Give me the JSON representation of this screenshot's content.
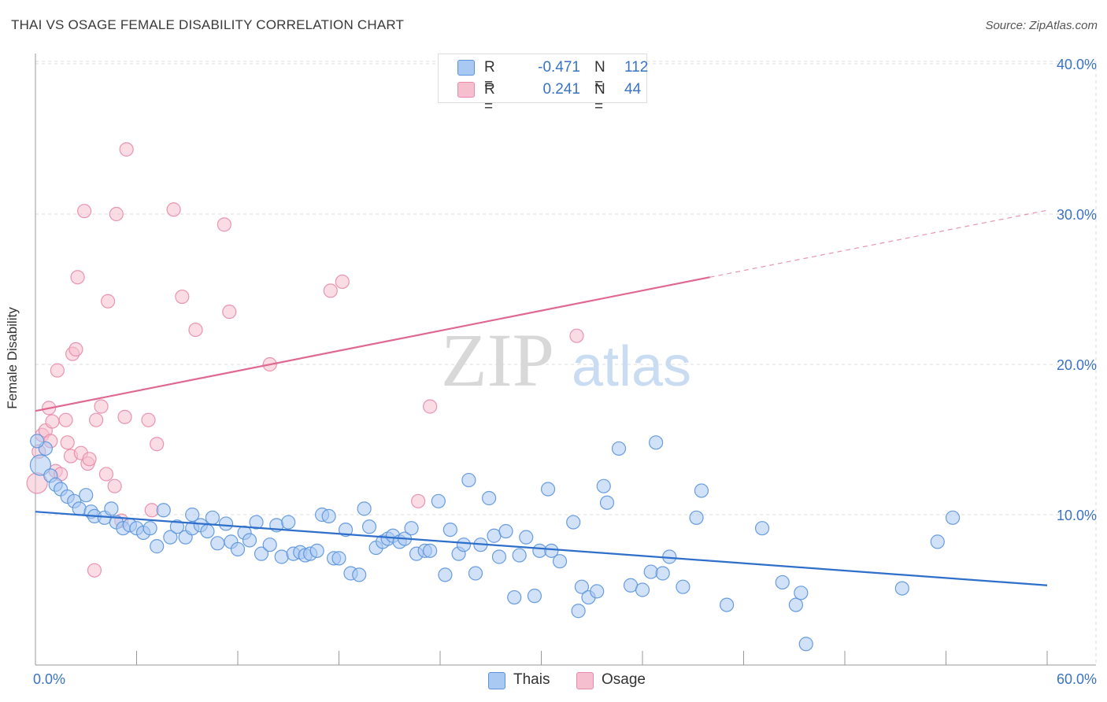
{
  "header": {
    "title": "THAI VS OSAGE FEMALE DISABILITY CORRELATION CHART",
    "source": "Source: ZipAtlas.com"
  },
  "watermark": {
    "zip": "ZIP",
    "atlas": "atlas"
  },
  "legend_top": {
    "rows": [
      {
        "r_label": "R =",
        "r_value": "-0.471",
        "n_label": "N =",
        "n_value": "112"
      },
      {
        "r_label": "R =",
        "r_value": "0.241",
        "n_label": "N =",
        "n_value": "44"
      }
    ]
  },
  "legend_bottom": {
    "items": [
      {
        "label": "Thais"
      },
      {
        "label": "Osage"
      }
    ]
  },
  "colors": {
    "thais_fill": "#a9c9f2",
    "thais_stroke": "#5a93dc",
    "thais_line": "#2f6fcc",
    "osage_fill": "#f6bfd0",
    "osage_stroke": "#e88aa8",
    "osage_line": "#e06890",
    "tick_label": "#3a73c4",
    "grid": "#dddddd"
  },
  "chart_data": {
    "type": "scatter",
    "title": "THAI VS OSAGE FEMALE DISABILITY CORRELATION CHART",
    "xlabel": "",
    "ylabel": "Female Disability",
    "xlim": [
      0,
      60
    ],
    "ylim": [
      0,
      42
    ],
    "x_tick_labels": [
      "0.0%",
      "60.0%"
    ],
    "y_ticks": [
      10,
      20,
      30,
      40
    ],
    "y_tick_labels": [
      "10.0%",
      "20.0%",
      "30.0%",
      "40.0%"
    ],
    "grid": "horizontal dashed",
    "legend_position": "top-center",
    "series": [
      {
        "name": "Thais",
        "r": -0.471,
        "n": 112,
        "trend": {
          "x": [
            0,
            60
          ],
          "y": [
            10.2,
            5.3
          ]
        },
        "points": [
          [
            0.3,
            13.3
          ],
          [
            0.6,
            14.4
          ],
          [
            0.9,
            12.6
          ],
          [
            1.2,
            12.0
          ],
          [
            1.5,
            11.7
          ],
          [
            1.9,
            11.2
          ],
          [
            2.3,
            10.9
          ],
          [
            2.6,
            10.4
          ],
          [
            3.0,
            11.3
          ],
          [
            3.3,
            10.2
          ],
          [
            3.5,
            9.9
          ],
          [
            4.1,
            9.8
          ],
          [
            4.5,
            10.4
          ],
          [
            4.8,
            9.5
          ],
          [
            5.2,
            9.1
          ],
          [
            5.6,
            9.3
          ],
          [
            6.0,
            9.1
          ],
          [
            6.4,
            8.8
          ],
          [
            6.8,
            9.1
          ],
          [
            7.2,
            7.9
          ],
          [
            7.6,
            10.3
          ],
          [
            8.0,
            8.5
          ],
          [
            8.4,
            9.2
          ],
          [
            8.9,
            8.5
          ],
          [
            9.3,
            9.1
          ],
          [
            9.3,
            10.0
          ],
          [
            9.8,
            9.3
          ],
          [
            10.2,
            8.9
          ],
          [
            10.5,
            9.8
          ],
          [
            10.8,
            8.1
          ],
          [
            11.3,
            9.4
          ],
          [
            11.6,
            8.2
          ],
          [
            12.0,
            7.7
          ],
          [
            12.4,
            8.8
          ],
          [
            12.7,
            8.3
          ],
          [
            13.1,
            9.5
          ],
          [
            13.4,
            7.4
          ],
          [
            13.9,
            8.0
          ],
          [
            14.3,
            9.3
          ],
          [
            14.6,
            7.2
          ],
          [
            15.0,
            9.5
          ],
          [
            15.3,
            7.4
          ],
          [
            15.7,
            7.5
          ],
          [
            16.0,
            7.3
          ],
          [
            16.3,
            7.4
          ],
          [
            16.7,
            7.6
          ],
          [
            17.0,
            10.0
          ],
          [
            17.4,
            9.9
          ],
          [
            17.7,
            7.1
          ],
          [
            18.0,
            7.1
          ],
          [
            18.4,
            9.0
          ],
          [
            18.7,
            6.1
          ],
          [
            19.2,
            6.0
          ],
          [
            19.5,
            10.4
          ],
          [
            19.8,
            9.2
          ],
          [
            20.2,
            7.8
          ],
          [
            20.6,
            8.2
          ],
          [
            20.9,
            8.4
          ],
          [
            21.2,
            8.6
          ],
          [
            21.6,
            8.2
          ],
          [
            21.9,
            8.4
          ],
          [
            22.3,
            9.1
          ],
          [
            22.6,
            7.4
          ],
          [
            23.1,
            7.6
          ],
          [
            23.4,
            7.6
          ],
          [
            23.9,
            10.9
          ],
          [
            24.3,
            6.0
          ],
          [
            24.6,
            9.0
          ],
          [
            25.1,
            7.4
          ],
          [
            25.4,
            8.0
          ],
          [
            25.7,
            12.3
          ],
          [
            26.1,
            6.1
          ],
          [
            26.4,
            8.0
          ],
          [
            26.9,
            11.1
          ],
          [
            27.2,
            8.6
          ],
          [
            27.5,
            7.2
          ],
          [
            27.9,
            8.9
          ],
          [
            28.4,
            4.5
          ],
          [
            28.7,
            7.3
          ],
          [
            29.1,
            8.5
          ],
          [
            29.6,
            4.6
          ],
          [
            29.9,
            7.6
          ],
          [
            30.4,
            11.7
          ],
          [
            30.6,
            7.6
          ],
          [
            31.1,
            6.9
          ],
          [
            31.9,
            9.5
          ],
          [
            32.2,
            3.6
          ],
          [
            32.4,
            5.2
          ],
          [
            32.8,
            4.5
          ],
          [
            33.3,
            4.9
          ],
          [
            33.7,
            11.9
          ],
          [
            33.9,
            10.8
          ],
          [
            34.6,
            14.4
          ],
          [
            35.3,
            5.3
          ],
          [
            36.0,
            5.0
          ],
          [
            36.5,
            6.2
          ],
          [
            36.8,
            14.8
          ],
          [
            37.2,
            6.1
          ],
          [
            37.6,
            7.2
          ],
          [
            38.4,
            5.2
          ],
          [
            39.2,
            9.8
          ],
          [
            39.5,
            11.6
          ],
          [
            41.0,
            4.0
          ],
          [
            43.1,
            9.1
          ],
          [
            44.3,
            5.5
          ],
          [
            45.1,
            4.0
          ],
          [
            45.4,
            4.8
          ],
          [
            45.7,
            1.4
          ],
          [
            51.4,
            5.1
          ],
          [
            53.5,
            8.2
          ],
          [
            54.4,
            9.8
          ],
          [
            0.1,
            14.9
          ]
        ]
      },
      {
        "name": "Osage",
        "r": 0.241,
        "n": 44,
        "trend": {
          "x": [
            0,
            40
          ],
          "y": [
            16.9,
            25.8
          ]
        },
        "points": [
          [
            0.1,
            12.1
          ],
          [
            0.2,
            14.2
          ],
          [
            0.4,
            15.3
          ],
          [
            0.6,
            15.6
          ],
          [
            0.8,
            17.1
          ],
          [
            0.9,
            14.9
          ],
          [
            1.0,
            16.2
          ],
          [
            1.2,
            12.9
          ],
          [
            1.3,
            19.6
          ],
          [
            1.5,
            12.7
          ],
          [
            1.8,
            16.3
          ],
          [
            1.9,
            14.8
          ],
          [
            2.1,
            13.9
          ],
          [
            2.2,
            20.7
          ],
          [
            2.4,
            21.0
          ],
          [
            2.5,
            25.8
          ],
          [
            2.7,
            14.1
          ],
          [
            2.9,
            30.2
          ],
          [
            3.1,
            13.4
          ],
          [
            3.2,
            13.7
          ],
          [
            3.5,
            6.3
          ],
          [
            3.6,
            16.3
          ],
          [
            3.9,
            17.2
          ],
          [
            4.2,
            12.7
          ],
          [
            4.3,
            24.2
          ],
          [
            4.7,
            11.9
          ],
          [
            4.8,
            30.0
          ],
          [
            5.1,
            9.6
          ],
          [
            5.3,
            16.5
          ],
          [
            5.4,
            34.3
          ],
          [
            6.7,
            16.3
          ],
          [
            6.9,
            10.3
          ],
          [
            7.2,
            14.7
          ],
          [
            8.2,
            30.3
          ],
          [
            8.7,
            24.5
          ],
          [
            9.5,
            22.3
          ],
          [
            11.2,
            29.3
          ],
          [
            11.5,
            23.5
          ],
          [
            13.9,
            20.0
          ],
          [
            17.5,
            24.9
          ],
          [
            18.2,
            25.5
          ],
          [
            22.7,
            10.9
          ],
          [
            23.4,
            17.2
          ],
          [
            32.1,
            21.9
          ]
        ]
      }
    ]
  }
}
